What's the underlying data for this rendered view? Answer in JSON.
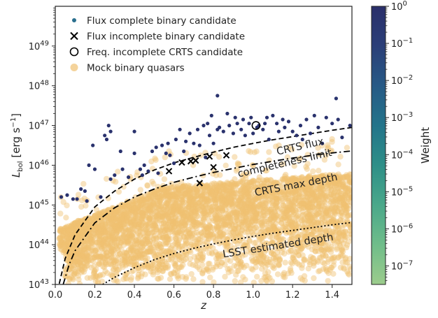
{
  "chart_data": {
    "type": "scatter",
    "xlabel": "z",
    "ylabel_main": "L",
    "ylabel_sub": "bol",
    "ylabel_unit": "[erg s",
    "ylabel_unit_exp": "−1",
    "ylabel_unit_close": "]",
    "xlim": [
      0.0,
      1.5
    ],
    "ylim_log10": [
      43,
      50
    ],
    "y_scale": "log",
    "x_ticks": [
      "0.0",
      "0.2",
      "0.4",
      "0.6",
      "0.8",
      "1.0",
      "1.2",
      "1.4"
    ],
    "y_ticks": [
      {
        "base": "10",
        "exp": "43",
        "v": 43
      },
      {
        "base": "10",
        "exp": "44",
        "v": 44
      },
      {
        "base": "10",
        "exp": "45",
        "v": 45
      },
      {
        "base": "10",
        "exp": "46",
        "v": 46
      },
      {
        "base": "10",
        "exp": "47",
        "v": 47
      },
      {
        "base": "10",
        "exp": "48",
        "v": 48
      },
      {
        "base": "10",
        "exp": "49",
        "v": 49
      }
    ],
    "legend_position": "top-left",
    "legend": [
      {
        "label": "Flux complete binary candidate",
        "marker": "dot",
        "color": "#2a6f8e"
      },
      {
        "label": "Flux incomplete binary candidate",
        "marker": "x",
        "color": "#000000"
      },
      {
        "label": "Freq. incomplete CRTS candidate",
        "marker": "open-circle",
        "color": "#000000"
      },
      {
        "label": "Mock binary quasars",
        "marker": "dot",
        "color": "#f0c070"
      }
    ],
    "annotations": {
      "flux_line1": "CRTS flux",
      "flux_line2": "completeness limit",
      "max_depth": "CRTS max depth",
      "lsst": "LSST estimated depth"
    },
    "curves": [
      {
        "name": "CRTS flux completeness limit",
        "style": "dashed",
        "points": [
          [
            0.02,
            43.02
          ],
          [
            0.05,
            43.65
          ],
          [
            0.1,
            44.25
          ],
          [
            0.2,
            44.95
          ],
          [
            0.3,
            45.35
          ],
          [
            0.4,
            45.65
          ],
          [
            0.5,
            45.88
          ],
          [
            0.6,
            46.06
          ],
          [
            0.7,
            46.2
          ],
          [
            0.8,
            46.33
          ],
          [
            0.9,
            46.45
          ],
          [
            1.0,
            46.55
          ],
          [
            1.1,
            46.64
          ],
          [
            1.2,
            46.72
          ],
          [
            1.3,
            46.8
          ],
          [
            1.4,
            46.88
          ],
          [
            1.5,
            46.95
          ]
        ]
      },
      {
        "name": "CRTS max depth",
        "style": "dashdot",
        "points": [
          [
            0.04,
            43.0
          ],
          [
            0.07,
            43.5
          ],
          [
            0.1,
            43.85
          ],
          [
            0.2,
            44.55
          ],
          [
            0.3,
            44.93
          ],
          [
            0.4,
            45.2
          ],
          [
            0.5,
            45.4
          ],
          [
            0.6,
            45.57
          ],
          [
            0.7,
            45.7
          ],
          [
            0.8,
            45.82
          ],
          [
            0.9,
            45.92
          ],
          [
            1.0,
            46.02
          ],
          [
            1.1,
            46.1
          ],
          [
            1.2,
            46.18
          ],
          [
            1.3,
            46.25
          ],
          [
            1.4,
            46.31
          ],
          [
            1.5,
            46.36
          ]
        ]
      },
      {
        "name": "LSST estimated depth",
        "style": "dotted",
        "points": [
          [
            0.24,
            43.0
          ],
          [
            0.3,
            43.18
          ],
          [
            0.4,
            43.42
          ],
          [
            0.5,
            43.62
          ],
          [
            0.6,
            43.78
          ],
          [
            0.7,
            43.91
          ],
          [
            0.8,
            44.02
          ],
          [
            0.9,
            44.12
          ],
          [
            1.0,
            44.21
          ],
          [
            1.1,
            44.29
          ],
          [
            1.2,
            44.36
          ],
          [
            1.3,
            44.43
          ],
          [
            1.4,
            44.5
          ],
          [
            1.5,
            44.56
          ]
        ]
      }
    ],
    "flux_complete": [
      [
        0.03,
        45.2
      ],
      [
        0.06,
        45.25
      ],
      [
        0.09,
        45.15
      ],
      [
        0.11,
        45.15
      ],
      [
        0.13,
        45.4
      ],
      [
        0.15,
        45.35
      ],
      [
        0.16,
        45.1
      ],
      [
        0.17,
        46.0
      ],
      [
        0.19,
        46.5
      ],
      [
        0.2,
        45.9
      ],
      [
        0.23,
        45.2
      ],
      [
        0.25,
        46.75
      ],
      [
        0.26,
        46.65
      ],
      [
        0.27,
        47.0
      ],
      [
        0.28,
        46.85
      ],
      [
        0.28,
        45.65
      ],
      [
        0.3,
        45.75
      ],
      [
        0.33,
        46.35
      ],
      [
        0.34,
        45.9
      ],
      [
        0.37,
        45.7
      ],
      [
        0.4,
        46.3
      ],
      [
        0.4,
        46.85
      ],
      [
        0.43,
        45.9
      ],
      [
        0.44,
        45.75
      ],
      [
        0.45,
        46.0
      ],
      [
        0.47,
        45.85
      ],
      [
        0.49,
        46.35
      ],
      [
        0.51,
        46.45
      ],
      [
        0.52,
        45.8
      ],
      [
        0.54,
        46.5
      ],
      [
        0.56,
        46.3
      ],
      [
        0.57,
        46.55
      ],
      [
        0.58,
        46.25
      ],
      [
        0.6,
        46.05
      ],
      [
        0.61,
        46.65
      ],
      [
        0.63,
        46.9
      ],
      [
        0.65,
        46.35
      ],
      [
        0.66,
        46.6
      ],
      [
        0.68,
        46.8
      ],
      [
        0.7,
        46.55
      ],
      [
        0.72,
        46.9
      ],
      [
        0.73,
        46.5
      ],
      [
        0.75,
        47.0
      ],
      [
        0.76,
        46.2
      ],
      [
        0.77,
        47.05
      ],
      [
        0.78,
        46.75
      ],
      [
        0.79,
        47.25
      ],
      [
        0.8,
        46.55
      ],
      [
        0.82,
        46.9
      ],
      [
        0.83,
        46.95
      ],
      [
        0.85,
        46.85
      ],
      [
        0.87,
        47.3
      ],
      [
        0.88,
        47.0
      ],
      [
        0.9,
        46.8
      ],
      [
        0.91,
        47.2
      ],
      [
        0.92,
        47.05
      ],
      [
        0.94,
        46.9
      ],
      [
        0.95,
        47.15
      ],
      [
        0.96,
        46.75
      ],
      [
        0.98,
        47.05
      ],
      [
        0.99,
        47.2
      ],
      [
        1.0,
        46.8
      ],
      [
        1.02,
        46.95
      ],
      [
        1.03,
        47.0
      ],
      [
        1.05,
        46.9
      ],
      [
        1.06,
        47.05
      ],
      [
        1.07,
        47.2
      ],
      [
        1.08,
        46.65
      ],
      [
        1.1,
        47.25
      ],
      [
        1.12,
        47.05
      ],
      [
        1.13,
        46.85
      ],
      [
        1.15,
        47.15
      ],
      [
        1.16,
        46.95
      ],
      [
        1.18,
        47.1
      ],
      [
        1.2,
        46.85
      ],
      [
        1.22,
        46.75
      ],
      [
        1.24,
        47.0
      ],
      [
        1.25,
        46.65
      ],
      [
        1.27,
        47.15
      ],
      [
        1.29,
        46.8
      ],
      [
        1.31,
        47.25
      ],
      [
        1.33,
        46.95
      ],
      [
        1.35,
        46.55
      ],
      [
        1.37,
        47.2
      ],
      [
        1.4,
        47.05
      ],
      [
        1.43,
        47.15
      ],
      [
        1.45,
        46.7
      ],
      [
        1.49,
        47.0
      ],
      [
        0.82,
        47.75
      ],
      [
        1.42,
        47.68
      ]
    ],
    "flux_incomplete": [
      [
        0.575,
        45.85
      ],
      [
        0.64,
        46.07
      ],
      [
        0.685,
        46.1
      ],
      [
        0.71,
        46.12
      ],
      [
        0.73,
        45.55
      ],
      [
        0.78,
        46.22
      ],
      [
        0.8,
        45.95
      ],
      [
        0.865,
        46.25
      ]
    ],
    "freq_incomplete": [
      [
        1.015,
        47.0
      ]
    ]
  },
  "colorbar": {
    "label": "Weight",
    "scale": "log",
    "range_log10": [
      -7.5,
      0
    ],
    "colors": [
      "#9ccc8c",
      "#6fbd8a",
      "#4aa88a",
      "#2e8f88",
      "#23748a",
      "#275a86",
      "#2b3f78",
      "#2a2f6a"
    ],
    "ticks": [
      {
        "base": "10",
        "exp": "0",
        "v": 0
      },
      {
        "base": "10",
        "exp": "−1",
        "v": -1
      },
      {
        "base": "10",
        "exp": "−2",
        "v": -2
      },
      {
        "base": "10",
        "exp": "−3",
        "v": -3
      },
      {
        "base": "10",
        "exp": "−4",
        "v": -4
      },
      {
        "base": "10",
        "exp": "−5",
        "v": -5
      },
      {
        "base": "10",
        "exp": "−6",
        "v": -6
      },
      {
        "base": "10",
        "exp": "−7",
        "v": -7
      }
    ]
  },
  "colors": {
    "mock": "#f0c070",
    "mock_dense": "#e0900a",
    "axis": "#222222"
  }
}
